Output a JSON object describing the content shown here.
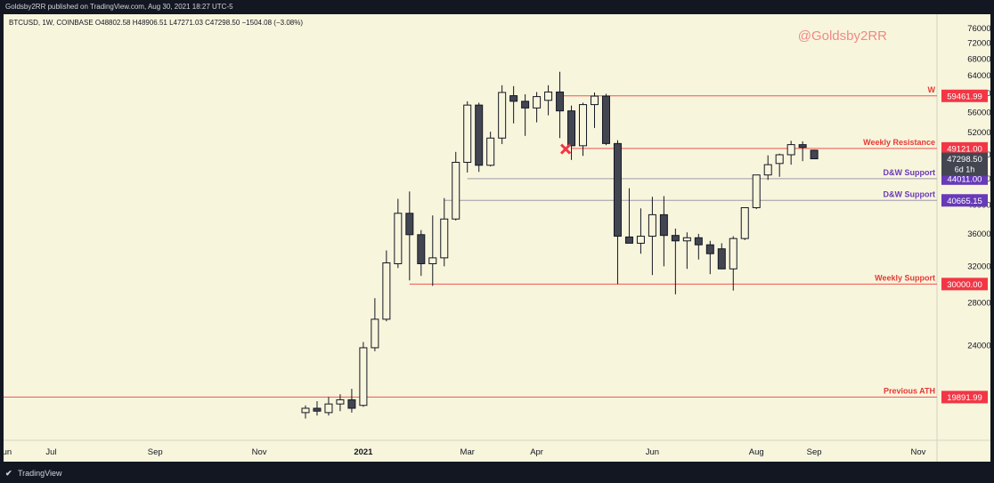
{
  "header": {
    "text": "Goldsby2RR published on TradingView.com, Aug 30, 2021 18:27 UTC-5"
  },
  "footer": {
    "logo_icon": "tradingview-logo-icon",
    "brand": "TradingView"
  },
  "chart_data": {
    "type": "candlestick",
    "title": "BTCUSD, 1W, COINBASE  O48802.58  H48906.51  L47271.03  C47298.50  −1504.08 (−3.08%)",
    "watermark": "@Goldsby2RR",
    "ylim": [
      17000,
      80000
    ],
    "y_ticks": [
      24000,
      28000,
      32000,
      36000,
      40000,
      44000,
      48000,
      52000,
      56000,
      60000,
      64000,
      68000,
      72000,
      76000
    ],
    "y_tick_labels": [
      "24000.00",
      "28000.00",
      "32000.00",
      "36000.00",
      "40000.00",
      "44000.00",
      "48000.00",
      "52000.00",
      "56000.00",
      "60000.00",
      "64000.00",
      "68000.00",
      "72000.00",
      "76000.00"
    ],
    "x_labels": [
      {
        "label": "Jun",
        "week": -26
      },
      {
        "label": "Jul",
        "week": -22
      },
      {
        "label": "Sep",
        "week": -13
      },
      {
        "label": "Nov",
        "week": -4
      },
      {
        "label": "2021",
        "week": 5
      },
      {
        "label": "Mar",
        "week": 14
      },
      {
        "label": "Apr",
        "week": 20
      },
      {
        "label": "Jun",
        "week": 30
      },
      {
        "label": "Aug",
        "week": 39
      },
      {
        "label": "Sep",
        "week": 44
      },
      {
        "label": "Nov",
        "week": 53
      }
    ],
    "colors": {
      "up": "#f8f5dd",
      "down": "#434651",
      "outline": "#131722",
      "red_line": "#f05350",
      "purple_line": "#9e9aa8",
      "red_label": "#e53935",
      "purple_label": "#673ab7",
      "last_price": "#434651"
    },
    "candles": [
      {
        "o": 18800,
        "h": 19300,
        "l": 18400,
        "c": 19100
      },
      {
        "o": 19100,
        "h": 19600,
        "l": 18600,
        "c": 18900
      },
      {
        "o": 18800,
        "h": 19900,
        "l": 18600,
        "c": 19400
      },
      {
        "o": 19400,
        "h": 20100,
        "l": 18900,
        "c": 19700
      },
      {
        "o": 19700,
        "h": 20500,
        "l": 18800,
        "c": 19100
      },
      {
        "o": 19300,
        "h": 24300,
        "l": 19200,
        "c": 23800
      },
      {
        "o": 23800,
        "h": 28500,
        "l": 23500,
        "c": 26400
      },
      {
        "o": 26400,
        "h": 33900,
        "l": 26200,
        "c": 32400
      },
      {
        "o": 32300,
        "h": 40900,
        "l": 31800,
        "c": 38800
      },
      {
        "o": 38800,
        "h": 42000,
        "l": 30400,
        "c": 35900
      },
      {
        "o": 35900,
        "h": 36500,
        "l": 30900,
        "c": 32300
      },
      {
        "o": 32300,
        "h": 38500,
        "l": 29800,
        "c": 33000
      },
      {
        "o": 33000,
        "h": 41000,
        "l": 32000,
        "c": 38000
      },
      {
        "o": 38000,
        "h": 48500,
        "l": 37800,
        "c": 46700
      },
      {
        "o": 46700,
        "h": 58300,
        "l": 45000,
        "c": 57500
      },
      {
        "o": 57500,
        "h": 58000,
        "l": 45100,
        "c": 46200
      },
      {
        "o": 46200,
        "h": 52200,
        "l": 46000,
        "c": 51000
      },
      {
        "o": 51000,
        "h": 61800,
        "l": 49900,
        "c": 60200
      },
      {
        "o": 59500,
        "h": 61600,
        "l": 53800,
        "c": 58300
      },
      {
        "o": 58300,
        "h": 59800,
        "l": 51400,
        "c": 56900
      },
      {
        "o": 56900,
        "h": 60300,
        "l": 54000,
        "c": 59300
      },
      {
        "o": 58500,
        "h": 61800,
        "l": 55400,
        "c": 60300
      },
      {
        "o": 60300,
        "h": 64900,
        "l": 51000,
        "c": 56300
      },
      {
        "o": 56300,
        "h": 57400,
        "l": 47100,
        "c": 49600
      },
      {
        "o": 49600,
        "h": 58000,
        "l": 47800,
        "c": 57600
      },
      {
        "o": 57600,
        "h": 60200,
        "l": 52900,
        "c": 59400
      },
      {
        "o": 59400,
        "h": 59900,
        "l": 49700,
        "c": 50000
      },
      {
        "o": 50000,
        "h": 50600,
        "l": 30000,
        "c": 35700
      },
      {
        "o": 35600,
        "h": 42500,
        "l": 34800,
        "c": 34800
      },
      {
        "o": 34800,
        "h": 39500,
        "l": 33500,
        "c": 35700
      },
      {
        "o": 35700,
        "h": 41200,
        "l": 31000,
        "c": 38600
      },
      {
        "o": 38600,
        "h": 41300,
        "l": 32000,
        "c": 35800
      },
      {
        "o": 35800,
        "h": 36700,
        "l": 28900,
        "c": 35100
      },
      {
        "o": 35100,
        "h": 36200,
        "l": 31700,
        "c": 35500
      },
      {
        "o": 35500,
        "h": 36000,
        "l": 32800,
        "c": 34600
      },
      {
        "o": 34600,
        "h": 35100,
        "l": 31100,
        "c": 33500
      },
      {
        "o": 34100,
        "h": 34800,
        "l": 31700,
        "c": 31700
      },
      {
        "o": 31700,
        "h": 35700,
        "l": 29300,
        "c": 35400
      },
      {
        "o": 35400,
        "h": 39500,
        "l": 35200,
        "c": 39600
      },
      {
        "o": 39600,
        "h": 44200,
        "l": 39400,
        "c": 44600
      },
      {
        "o": 44600,
        "h": 47900,
        "l": 43800,
        "c": 46300
      },
      {
        "o": 46500,
        "h": 48200,
        "l": 44300,
        "c": 48000
      },
      {
        "o": 48000,
        "h": 50500,
        "l": 46300,
        "c": 49800
      },
      {
        "o": 49800,
        "h": 50400,
        "l": 46900,
        "c": 49300
      },
      {
        "o": 48800,
        "h": 48900,
        "l": 47300,
        "c": 47300
      }
    ],
    "hlines": [
      {
        "label": "W",
        "value": 59461.99,
        "price_label": "59461.99",
        "color": "red",
        "from_week": 22
      },
      {
        "label": "Weekly Resistance",
        "value": 49121.0,
        "price_label": "49121.00",
        "color": "red",
        "from_week": 23
      },
      {
        "label": "D&W Support",
        "value": 44011.0,
        "price_label": "44011.00",
        "color": "purple",
        "from_week": 14
      },
      {
        "label": "D&W Support",
        "value": 40665.15,
        "price_label": "40665.15",
        "color": "purple",
        "from_week": 12
      },
      {
        "label": "Weekly Support",
        "value": 30000.0,
        "price_label": "30000.00",
        "color": "red",
        "from_week": 9
      },
      {
        "label": "Previous ATH",
        "value": 19891.99,
        "price_label": "19891.99",
        "color": "red",
        "from_week": -60
      }
    ],
    "last_price": {
      "price_label": "47298.50",
      "countdown": "6d 1h",
      "value": 47298.5
    },
    "cross_marker": {
      "week": 22.5,
      "value": 49000,
      "icon": "x-mark-icon"
    }
  }
}
